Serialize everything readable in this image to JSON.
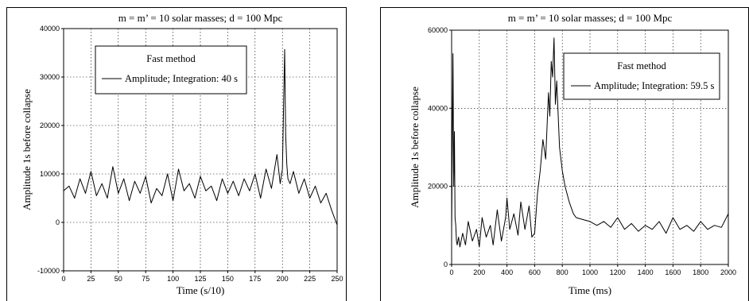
{
  "chart_data": [
    {
      "type": "line",
      "title": "m = m’ = 10 solar masses; d = 100 Mpc",
      "xlabel": "Time (s/10)",
      "ylabel": "Amplitude 1s before collapse",
      "xlim": [
        0,
        250
      ],
      "ylim": [
        -10000,
        40000
      ],
      "x_ticks": [
        0,
        25,
        50,
        75,
        100,
        125,
        150,
        175,
        200,
        225,
        250
      ],
      "y_ticks": [
        -10000,
        0,
        10000,
        20000,
        30000,
        40000
      ],
      "grid": true,
      "legend_title": "Fast method",
      "legend_position": "top-left",
      "series": [
        {
          "name": "Amplitude; Integration: 40 s",
          "x": [
            0,
            5,
            10,
            15,
            20,
            25,
            30,
            35,
            40,
            45,
            50,
            55,
            60,
            65,
            70,
            75,
            80,
            85,
            90,
            95,
            100,
            105,
            110,
            115,
            120,
            125,
            130,
            135,
            140,
            145,
            150,
            155,
            160,
            165,
            170,
            175,
            180,
            185,
            190,
            195,
            198,
            200,
            202,
            203,
            204,
            205,
            207,
            210,
            215,
            220,
            225,
            230,
            235,
            240,
            245,
            250
          ],
          "values": [
            6500,
            7500,
            5000,
            9000,
            6000,
            10500,
            5500,
            8000,
            5000,
            11500,
            6000,
            9000,
            4500,
            8500,
            6000,
            9500,
            4000,
            7000,
            5500,
            10000,
            4500,
            11000,
            6500,
            8000,
            5000,
            9500,
            6500,
            7500,
            4500,
            9000,
            6000,
            8500,
            5500,
            9000,
            6500,
            10000,
            5000,
            11000,
            7000,
            14000,
            8000,
            11000,
            35700,
            18000,
            12000,
            9000,
            8000,
            10500,
            6000,
            9000,
            5000,
            7500,
            4000,
            6000,
            2500,
            -500
          ]
        }
      ]
    },
    {
      "type": "line",
      "title": "m = m’ = 10 solar masses; d = 100 Mpc",
      "xlabel": "Time (ms)",
      "ylabel": "Amplitude 1s before collapse",
      "xlim": [
        0,
        2000
      ],
      "ylim": [
        0,
        60000
      ],
      "x_ticks": [
        0,
        200,
        400,
        600,
        800,
        1000,
        1200,
        1400,
        1600,
        1800,
        2000
      ],
      "y_ticks": [
        0,
        20000,
        40000,
        60000
      ],
      "grid": true,
      "legend_title": "Fast method",
      "legend_position": "top-right",
      "series": [
        {
          "name": "Amplitude; Integration: 59.5 s",
          "x": [
            0,
            10,
            15,
            20,
            25,
            30,
            35,
            40,
            50,
            60,
            80,
            100,
            120,
            150,
            180,
            200,
            220,
            250,
            280,
            300,
            330,
            360,
            390,
            400,
            420,
            450,
            480,
            500,
            530,
            560,
            580,
            600,
            620,
            640,
            660,
            680,
            700,
            710,
            720,
            730,
            740,
            750,
            760,
            780,
            800,
            820,
            850,
            880,
            900,
            950,
            1000,
            1050,
            1100,
            1150,
            1200,
            1250,
            1300,
            1350,
            1400,
            1450,
            1500,
            1550,
            1600,
            1650,
            1700,
            1750,
            1800,
            1850,
            1900,
            1950,
            2000
          ],
          "values": [
            8000,
            54000,
            20000,
            34000,
            12000,
            10000,
            6000,
            5000,
            7000,
            4500,
            8000,
            5000,
            11000,
            6000,
            9000,
            4500,
            12000,
            7000,
            10000,
            5000,
            14000,
            6000,
            12000,
            17000,
            9000,
            13000,
            7500,
            16000,
            9000,
            15000,
            7000,
            8000,
            18000,
            24000,
            32000,
            27000,
            44000,
            38000,
            52000,
            48000,
            58000,
            41000,
            47000,
            30000,
            24000,
            20000,
            16000,
            13000,
            12000,
            11500,
            11000,
            10000,
            11000,
            9500,
            12000,
            9000,
            10500,
            8500,
            10000,
            9000,
            11000,
            8000,
            12000,
            9000,
            10000,
            8500,
            11000,
            9000,
            10000,
            9500,
            13000
          ]
        }
      ]
    }
  ]
}
